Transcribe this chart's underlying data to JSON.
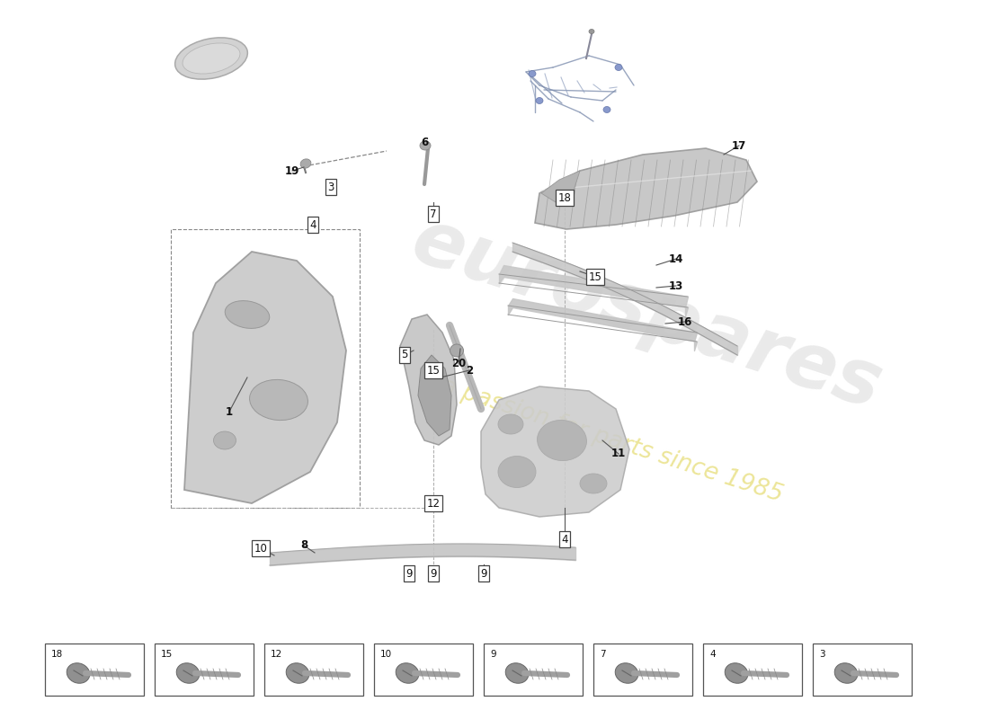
{
  "bg_color": "#ffffff",
  "watermark_main": "eurospares",
  "watermark_sub": "a passion for parts since 1985",
  "wm_color1": "#c8c8c8",
  "wm_color2": "#ddd044",
  "part_fill": "#d0d0d0",
  "part_edge": "#999999",
  "line_color": "#555555",
  "label_edge": "#444444",
  "legend_nums": [
    18,
    15,
    12,
    10,
    9,
    7,
    4,
    3
  ],
  "fig_w": 11.0,
  "fig_h": 8.0,
  "dpi": 100
}
